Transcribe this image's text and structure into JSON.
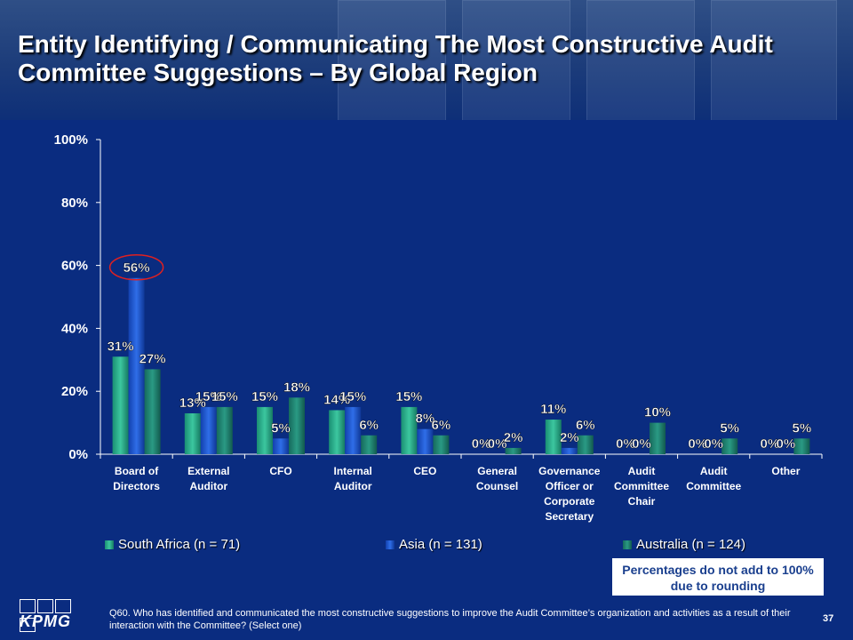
{
  "title": "Entity Identifying / Communicating The Most Constructive Audit Committee Suggestions – By Global Region",
  "chart_data": {
    "type": "bar",
    "categories": [
      [
        "Board of",
        "Directors"
      ],
      [
        "External",
        "Auditor"
      ],
      [
        "CFO"
      ],
      [
        "Internal",
        "Auditor"
      ],
      [
        "CEO"
      ],
      [
        "General",
        "Counsel"
      ],
      [
        "Governance",
        "Officer or",
        "Corporate",
        "Secretary"
      ],
      [
        "Audit",
        "Committee",
        "Chair"
      ],
      [
        "Audit",
        "Committee"
      ],
      [
        "Other"
      ]
    ],
    "series": [
      {
        "name": "South Africa (n = 71)",
        "values": [
          31,
          13,
          15,
          14,
          15,
          0,
          11,
          0,
          0,
          0
        ]
      },
      {
        "name": "Asia (n = 131)",
        "values": [
          56,
          15,
          5,
          15,
          8,
          0,
          2,
          0,
          0,
          0
        ]
      },
      {
        "name": "Australia (n = 124)",
        "values": [
          27,
          15,
          18,
          6,
          6,
          2,
          6,
          10,
          5,
          5
        ]
      }
    ],
    "yticks": [
      "0%",
      "20%",
      "40%",
      "60%",
      "80%",
      "100%"
    ],
    "ylim": [
      0,
      100
    ],
    "legend_position": "bottom",
    "colors": [
      "#25a88a",
      "#1a4fc9",
      "#1e8070"
    ],
    "highlight": "56% (Board of Directors, Asia) circled in red"
  },
  "note": "Percentages do not add to 100% due to rounding",
  "logo_text": "KPMG",
  "question": "Q60. Who has identified and communicated the most constructive suggestions to improve the Audit Committee’s organization and activities as a result of their interaction with the Committee? (Select one)",
  "page_number": "37"
}
